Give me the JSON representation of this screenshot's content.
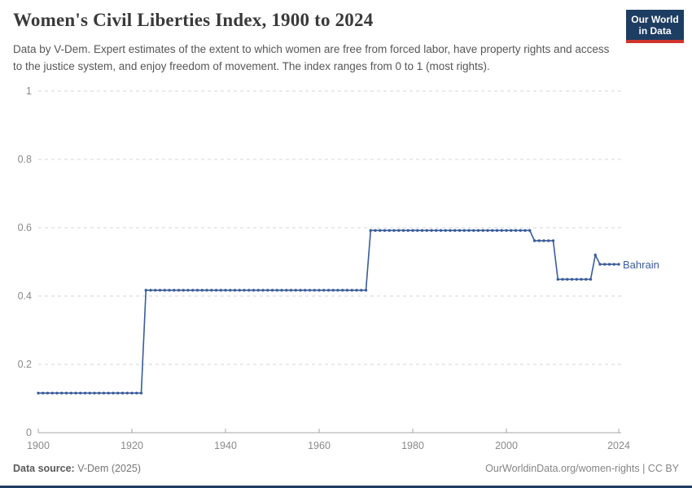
{
  "header": {
    "title": "Women's Civil Liberties Index, 1900 to 2024",
    "subtitle": "Data by V-Dem. Expert estimates of the extent to which women are free from forced labor, have property rights and access to the justice system, and enjoy freedom of movement. The index ranges from 0 to 1 (most rights).",
    "logo": {
      "line1": "Our World",
      "line2": "in Data",
      "bg": "#1d3d63",
      "accent": "#d0342c"
    }
  },
  "chart_data": {
    "type": "line",
    "title": "Women's Civil Liberties Index, 1900 to 2024",
    "xlabel": "",
    "ylabel": "",
    "xlim": [
      1900,
      2024
    ],
    "ylim": [
      0,
      1
    ],
    "x_ticks": [
      1900,
      1920,
      1940,
      1960,
      1980,
      2000,
      2024
    ],
    "y_ticks": [
      0,
      0.2,
      0.4,
      0.6,
      0.8,
      1
    ],
    "grid": "horizontal-dashed",
    "legend_position": "end-of-line-label",
    "series": [
      {
        "name": "Bahrain",
        "color": "#3a5c9b",
        "marker": "dot-every-year",
        "segments": [
          {
            "from_year": 1900,
            "to_year": 1922,
            "value": 0.116
          },
          {
            "from_year": 1923,
            "to_year": 1970,
            "value": 0.417
          },
          {
            "from_year": 1971,
            "to_year": 2005,
            "value": 0.592
          },
          {
            "from_year": 2006,
            "to_year": 2010,
            "value": 0.562
          },
          {
            "from_year": 2011,
            "to_year": 2018,
            "value": 0.449
          },
          {
            "from_year": 2019,
            "to_year": 2019,
            "value": 0.52
          },
          {
            "from_year": 2020,
            "to_year": 2024,
            "value": 0.493
          }
        ]
      }
    ]
  },
  "footer": {
    "source_label": "Data source:",
    "source_value": "V-Dem (2025)",
    "rights": "OurWorldinData.org/women-rights | CC BY"
  },
  "colors": {
    "line": "#3a5c9b",
    "grid": "#d5d5d5",
    "axis": "#a6a6a6",
    "tick_label": "#8a8a8a",
    "navy": "#1d3d63"
  }
}
